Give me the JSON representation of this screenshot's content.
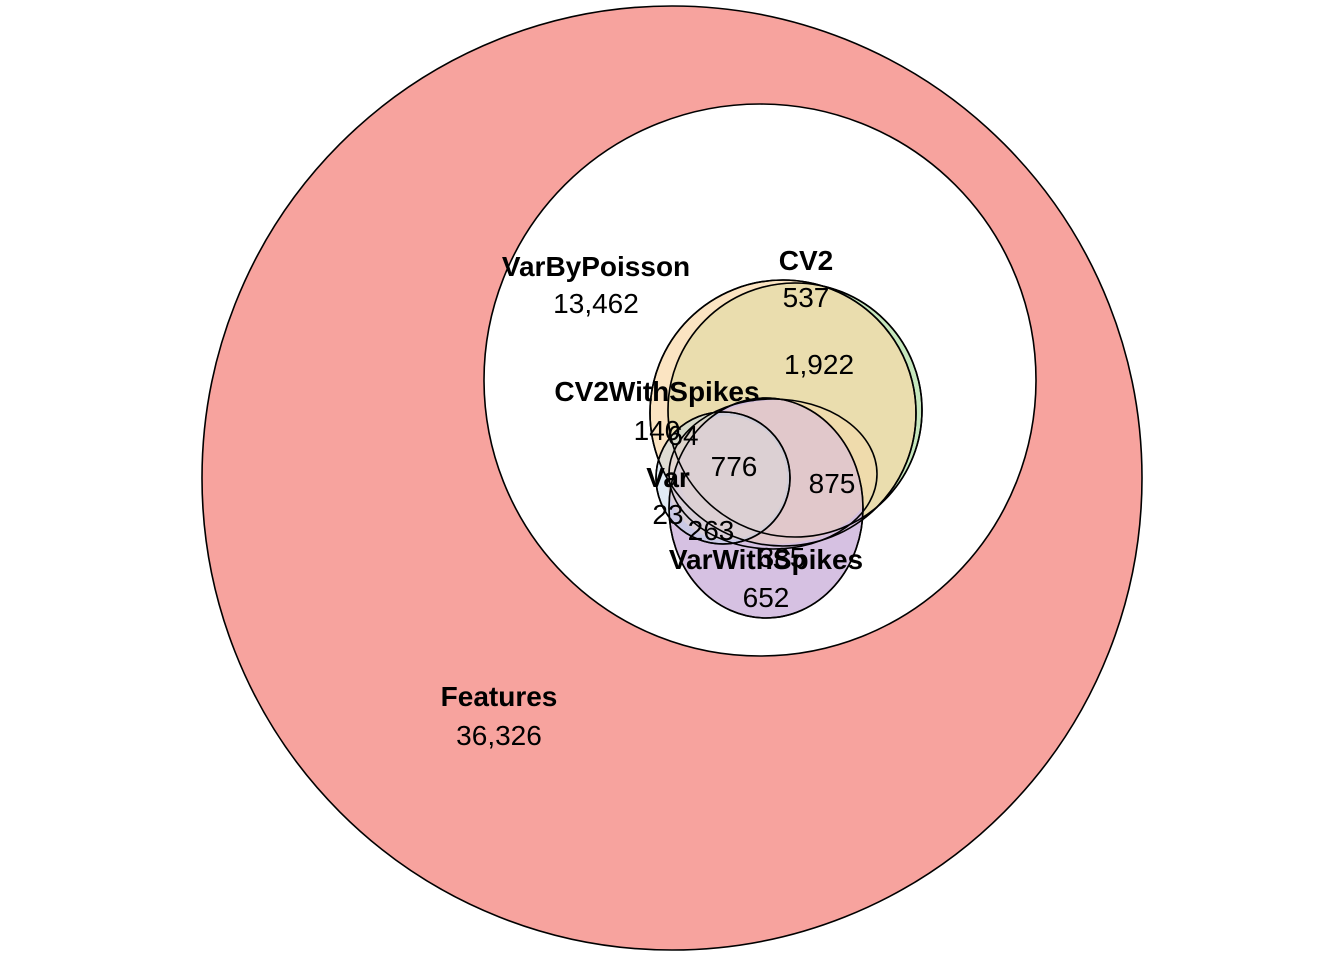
{
  "chart_data": {
    "type": "euler",
    "sets": [
      {
        "id": "features",
        "name": "Features",
        "color": "#F7A39E"
      },
      {
        "id": "varbypoisson",
        "name": "VarByPoisson",
        "color": "#FFFFFF"
      },
      {
        "id": "cv2",
        "name": "CV2",
        "color": "#C3E6B9"
      },
      {
        "id": "cv2withspikes",
        "name": "CV2WithSpikes",
        "color": "#F9D8A8"
      },
      {
        "id": "var",
        "name": "Var",
        "color": "#BDD2E8"
      },
      {
        "id": "varwithspikes",
        "name": "VarWithSpikes",
        "color": "#D4BEE0"
      }
    ],
    "set_labels": {
      "features": "Features",
      "varbypoisson": "VarByPoisson",
      "cv2": "CV2",
      "cv2withspikes": "CV2WithSpikes",
      "var": "Var",
      "varwithspikes": "VarWithSpikes"
    },
    "region_counts": {
      "features_only": "36,326",
      "varbypoisson_only": "13,462",
      "cv2_only": "537",
      "cv2_cv2withspikes": "1,922",
      "cv2withspikes_only": "140",
      "cv2withspikes_var": "64",
      "var_core": "776",
      "cv2withspikes_varwithspikes": "875",
      "var_only": "23",
      "var_varwithspikes": "263",
      "varwithspikes_cv2withspikes": "385",
      "varwithspikes_only": "652"
    }
  }
}
